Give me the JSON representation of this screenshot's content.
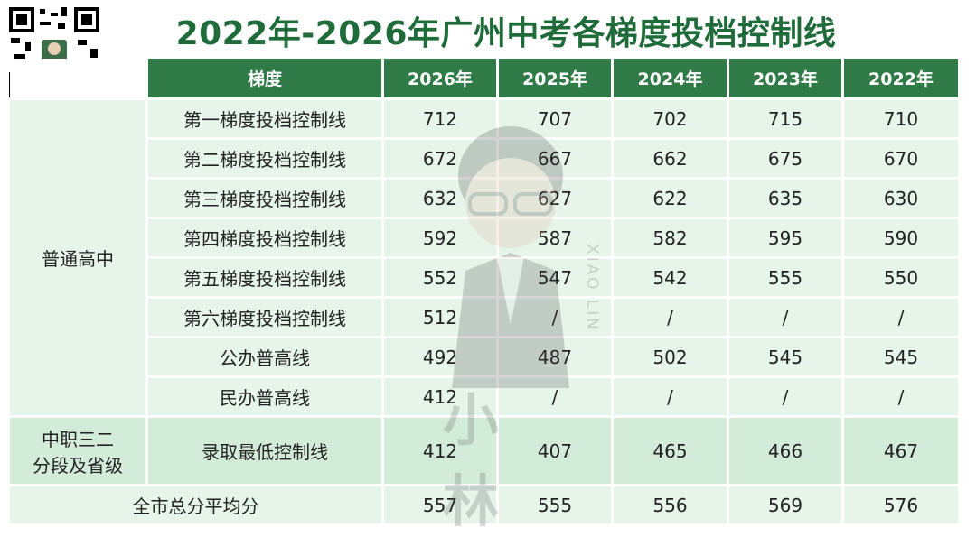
{
  "header": {
    "title": "2022年-2026年广州中考各梯度投档控制线"
  },
  "table": {
    "columns": [
      "梯度",
      "2026年",
      "2025年",
      "2024年",
      "2023年",
      "2022年"
    ],
    "groups": [
      {
        "label": [
          "普通高中"
        ],
        "rows": [
          {
            "name": "第一梯度投档控制线",
            "values": [
              712,
              707,
              702,
              715,
              710
            ]
          },
          {
            "name": "第二梯度投档控制线",
            "values": [
              672,
              667,
              662,
              675,
              670
            ]
          },
          {
            "name": "第三梯度投档控制线",
            "values": [
              632,
              627,
              622,
              635,
              630
            ]
          },
          {
            "name": "第四梯度投档控制线",
            "values": [
              592,
              587,
              582,
              595,
              590
            ]
          },
          {
            "name": "第五梯度投档控制线",
            "values": [
              552,
              547,
              542,
              555,
              550
            ]
          },
          {
            "name": "第六梯度投档控制线",
            "values": [
              512,
              "/",
              "/",
              "/",
              "/"
            ]
          },
          {
            "name": "公办普高线",
            "values": [
              492,
              487,
              502,
              545,
              545
            ]
          },
          {
            "name": "民办普高线",
            "values": [
              412,
              "/",
              "/",
              "/",
              "/"
            ]
          }
        ]
      },
      {
        "label": [
          "中职三二",
          "分段及省级"
        ],
        "rows": [
          {
            "name": "录取最低控制线",
            "values": [
              412,
              407,
              465,
              466,
              467
            ]
          }
        ]
      }
    ],
    "total": {
      "name": "全市总分平均分",
      "values": [
        557,
        555,
        556,
        569,
        576
      ]
    }
  },
  "watermark": {
    "text": "小 林",
    "latin": "XIAO LIN"
  }
}
